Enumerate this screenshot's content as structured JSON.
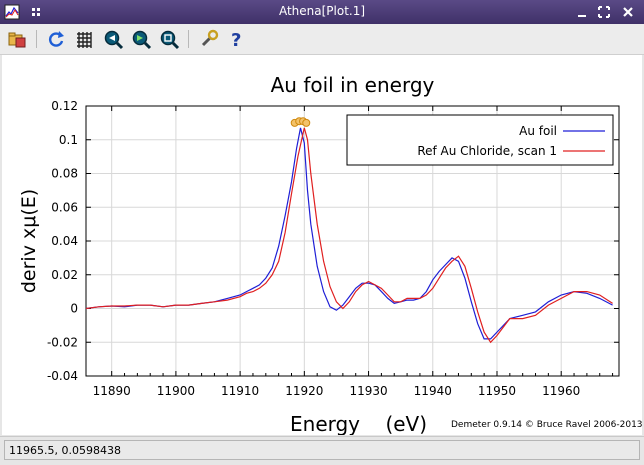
{
  "window": {
    "title": "Athena[Plot.1]"
  },
  "toolbar": {
    "buttons": [
      "open-icon",
      "refresh-icon",
      "grid-icon",
      "zoom-in-icon",
      "zoom-out-icon",
      "zoom-fit-icon",
      "settings-icon",
      "help-icon"
    ]
  },
  "status": {
    "coords": "11965.5, 0.0598438"
  },
  "chart_data": {
    "type": "line",
    "title": "Au foil in energy",
    "xlabel": "Energy    (eV)",
    "ylabel": "deriv xμ(E)",
    "xlim": [
      11886,
      11969
    ],
    "ylim": [
      -0.04,
      0.12
    ],
    "xticks": [
      "11890",
      "11900",
      "11910",
      "11920",
      "11930",
      "11940",
      "11950",
      "11960"
    ],
    "yticks": [
      "-0.04",
      "-0.02",
      "0",
      "0.02",
      "0.04",
      "0.06",
      "0.08",
      "0.1",
      "0.12"
    ],
    "grid": true,
    "legend_position": "top-right",
    "credit": "Demeter 0.9.14 © Bruce Ravel 2006-2013",
    "series": [
      {
        "name": "Au foil",
        "color": "#1f1fd6",
        "x": [
          11886,
          11888,
          11890,
          11892,
          11894,
          11896,
          11898,
          11900,
          11902,
          11904,
          11906,
          11908,
          11910,
          11911,
          11912,
          11913,
          11914,
          11915,
          11916,
          11917,
          11918,
          11918.8,
          11919.4,
          11920,
          11920.5,
          11921,
          11922,
          11923,
          11924,
          11925,
          11926,
          11927,
          11928,
          11929,
          11930,
          11931,
          11932,
          11933,
          11934,
          11935,
          11936,
          11937,
          11938,
          11939,
          11940,
          11941,
          11942,
          11943,
          11944,
          11945,
          11946,
          11947,
          11948,
          11949,
          11950,
          11952,
          11954,
          11956,
          11958,
          11960,
          11962,
          11964,
          11966,
          11968
        ],
        "y": [
          0.0,
          0.001,
          0.0015,
          0.001,
          0.002,
          0.002,
          0.001,
          0.002,
          0.002,
          0.003,
          0.004,
          0.006,
          0.008,
          0.01,
          0.012,
          0.014,
          0.018,
          0.024,
          0.037,
          0.055,
          0.075,
          0.095,
          0.107,
          0.098,
          0.07,
          0.05,
          0.025,
          0.01,
          0.001,
          -0.001,
          0.002,
          0.007,
          0.012,
          0.015,
          0.015,
          0.014,
          0.01,
          0.006,
          0.003,
          0.004,
          0.005,
          0.005,
          0.006,
          0.01,
          0.017,
          0.022,
          0.026,
          0.03,
          0.028,
          0.018,
          0.004,
          -0.009,
          -0.018,
          -0.018,
          -0.014,
          -0.006,
          -0.004,
          -0.002,
          0.004,
          0.008,
          0.01,
          0.009,
          0.006,
          0.002
        ]
      },
      {
        "name": "Ref Au Chloride, scan 1",
        "color": "#e02020",
        "x": [
          11886,
          11888,
          11890,
          11892,
          11894,
          11896,
          11898,
          11900,
          11902,
          11904,
          11906,
          11908,
          11910,
          11911,
          11912,
          11913,
          11914,
          11915,
          11916,
          11917,
          11918,
          11919,
          11920,
          11920.5,
          11921,
          11922,
          11923,
          11924,
          11925,
          11926,
          11927,
          11928,
          11929,
          11930,
          11931,
          11932,
          11933,
          11934,
          11935,
          11936,
          11937,
          11938,
          11939,
          11940,
          11941,
          11942,
          11943,
          11944,
          11945,
          11946,
          11947,
          11948,
          11949,
          11950,
          11952,
          11954,
          11956,
          11958,
          11960,
          11962,
          11964,
          11966,
          11968
        ],
        "y": [
          0.0,
          0.001,
          0.0015,
          0.0015,
          0.002,
          0.002,
          0.001,
          0.002,
          0.002,
          0.003,
          0.004,
          0.005,
          0.007,
          0.009,
          0.01,
          0.012,
          0.015,
          0.02,
          0.028,
          0.045,
          0.068,
          0.09,
          0.107,
          0.1,
          0.08,
          0.05,
          0.028,
          0.013,
          0.004,
          0.0,
          0.004,
          0.01,
          0.014,
          0.016,
          0.014,
          0.012,
          0.008,
          0.004,
          0.004,
          0.006,
          0.006,
          0.006,
          0.008,
          0.012,
          0.018,
          0.024,
          0.028,
          0.031,
          0.025,
          0.012,
          -0.002,
          -0.014,
          -0.02,
          -0.016,
          -0.006,
          -0.006,
          -0.004,
          0.002,
          0.006,
          0.01,
          0.01,
          0.008,
          0.003
        ]
      }
    ],
    "markers": [
      {
        "x": 11918.5,
        "y": 0.11
      },
      {
        "x": 11919.2,
        "y": 0.111
      },
      {
        "x": 11919.8,
        "y": 0.111
      },
      {
        "x": 11920.3,
        "y": 0.11
      }
    ]
  }
}
